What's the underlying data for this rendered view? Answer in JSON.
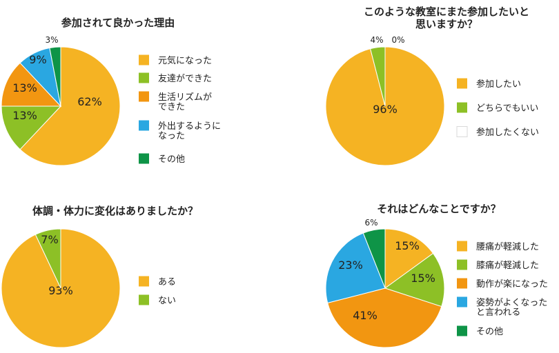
{
  "colors": {
    "yellow": "#F5B323",
    "green": "#8DC026",
    "orange": "#F29611",
    "blue": "#2AA7E1",
    "dark_green": "#0E9447",
    "white": "#FFFFFF",
    "outline": "#D9D9D9"
  },
  "chart_data": [
    {
      "type": "pie",
      "title": "参加されて良かった理由",
      "legend_position": "right",
      "series": [
        {
          "name": "元気になった",
          "value": 62,
          "label": "62%",
          "color": "#F5B323"
        },
        {
          "name": "友達ができた",
          "value": 13,
          "label": "13%",
          "color": "#8DC026"
        },
        {
          "name": "生活リズムが\nできた",
          "value": 13,
          "label": "13%",
          "color": "#F29611"
        },
        {
          "name": "外出するように\nなった",
          "value": 9,
          "label": "9%",
          "color": "#2AA7E1"
        },
        {
          "name": "その他",
          "value": 3,
          "label": "3%",
          "color": "#0E9447"
        }
      ]
    },
    {
      "type": "pie",
      "title": "このような教室にまた参加したいと\n思いますか？",
      "legend_position": "right",
      "series": [
        {
          "name": "参加したい",
          "value": 96,
          "label": "96%",
          "color": "#F5B323"
        },
        {
          "name": "どちらでもいい",
          "value": 4,
          "label": "4%",
          "color": "#8DC026"
        },
        {
          "name": "参加したくない",
          "value": 0,
          "label": "0%",
          "color": "#FFFFFF"
        }
      ]
    },
    {
      "type": "pie",
      "title": "体調・体力に変化はありましたか？",
      "legend_position": "right",
      "series": [
        {
          "name": "ある",
          "value": 93,
          "label": "93%",
          "color": "#F5B323"
        },
        {
          "name": "ない",
          "value": 7,
          "label": "7%",
          "color": "#8DC026"
        }
      ]
    },
    {
      "type": "pie",
      "title": "それはどんなことですか？",
      "legend_position": "right",
      "series": [
        {
          "name": "腰痛が軽減した",
          "value": 15,
          "label": "15%",
          "color": "#F5B323"
        },
        {
          "name": "膝痛が軽減した",
          "value": 15,
          "label": "15%",
          "color": "#8DC026"
        },
        {
          "name": "動作が楽になった",
          "value": 41,
          "label": "41%",
          "color": "#F29611"
        },
        {
          "name": "姿勢がよくなった\nと言われる",
          "value": 23,
          "label": "23%",
          "color": "#2AA7E1"
        },
        {
          "name": "その他",
          "value": 6,
          "label": "6%",
          "color": "#0E9447"
        }
      ]
    }
  ]
}
